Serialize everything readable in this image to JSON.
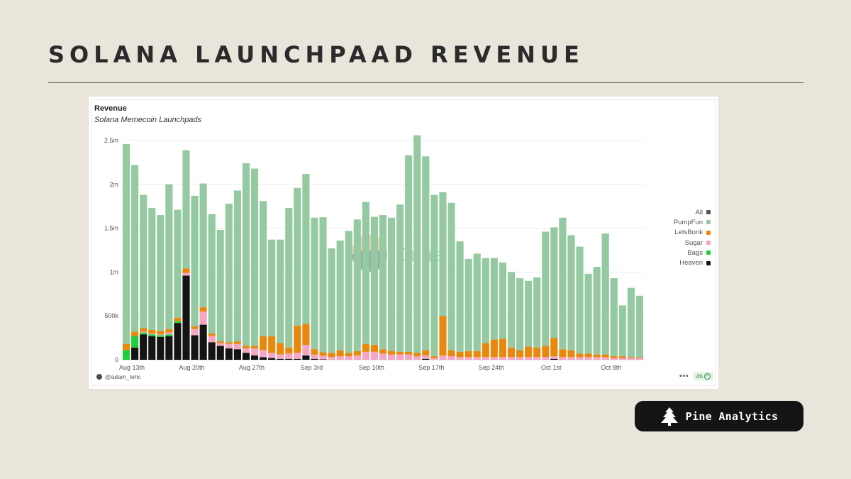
{
  "page_title": "SOLANA LAUNCHPAAD REVENUE",
  "brand": {
    "label": "Pine Analytics",
    "icon": "pine-tree-icon"
  },
  "footer": {
    "user": "@adam_tehc",
    "more_icon": "•••",
    "refresh": "4h"
  },
  "watermark": "Dune",
  "colors": {
    "PumpFun": "#95c9a2",
    "LetsBonk": "#e8890d",
    "Sugar": "#f4a6c3",
    "Bags": "#1fcf3e",
    "Heaven": "#141414",
    "All": "#555555"
  },
  "chart_data": {
    "type": "bar",
    "stacked": true,
    "title": "Revenue",
    "subtitle": "Solana Memecoin Launchpads",
    "ylim": [
      0,
      2500000
    ],
    "yticks": [
      0,
      500000,
      1000000,
      1500000,
      2000000,
      2500000
    ],
    "ytick_labels": [
      "0",
      "500k",
      "1m",
      "1.5m",
      "2m",
      "2.5m"
    ],
    "xtick_labels": [
      "Aug 13th",
      "Aug 20th",
      "Aug 27th",
      "Sep 3rd",
      "Sep 10th",
      "Sep 17th",
      "Sep 24th",
      "Oct 1st",
      "Oct 8th"
    ],
    "xtick_indices": [
      0,
      7,
      14,
      21,
      28,
      35,
      42,
      49,
      56
    ],
    "legend": [
      "All",
      "PumpFun",
      "LetsBonk",
      "Sugar",
      "Bags",
      "Heaven"
    ],
    "categories": [
      "Aug 13",
      "Aug 14",
      "Aug 15",
      "Aug 16",
      "Aug 17",
      "Aug 18",
      "Aug 19",
      "Aug 20",
      "Aug 21",
      "Aug 22",
      "Aug 23",
      "Aug 24",
      "Aug 25",
      "Aug 26",
      "Aug 27",
      "Aug 28",
      "Aug 29",
      "Aug 30",
      "Aug 31",
      "Sep 1",
      "Sep 2",
      "Sep 3",
      "Sep 4",
      "Sep 5",
      "Sep 6",
      "Sep 7",
      "Sep 8",
      "Sep 9",
      "Sep 10",
      "Sep 11",
      "Sep 12",
      "Sep 13",
      "Sep 14",
      "Sep 15",
      "Sep 16",
      "Sep 17",
      "Sep 18",
      "Sep 19",
      "Sep 20",
      "Sep 21",
      "Sep 22",
      "Sep 23",
      "Sep 24",
      "Sep 25",
      "Sep 26",
      "Sep 27",
      "Sep 28",
      "Sep 29",
      "Sep 30",
      "Oct 1",
      "Oct 2",
      "Oct 3",
      "Oct 4",
      "Oct 5",
      "Oct 6",
      "Oct 7",
      "Oct 8",
      "Oct 9",
      "Oct 10",
      "Oct 11",
      "Oct 12"
    ],
    "series": [
      {
        "name": "Heaven",
        "values": [
          0,
          140000,
          290000,
          270000,
          260000,
          270000,
          420000,
          960000,
          280000,
          400000,
          200000,
          160000,
          130000,
          120000,
          80000,
          50000,
          30000,
          20000,
          10000,
          10000,
          10000,
          50000,
          10000,
          5000,
          0,
          0,
          0,
          0,
          0,
          0,
          0,
          0,
          0,
          0,
          0,
          10000,
          0,
          0,
          0,
          0,
          0,
          0,
          0,
          0,
          0,
          0,
          0,
          0,
          0,
          0,
          10000,
          0,
          0,
          0,
          0,
          0,
          0,
          0,
          0,
          0,
          0
        ]
      },
      {
        "name": "Bags",
        "values": [
          110000,
          130000,
          20000,
          20000,
          20000,
          20000,
          20000,
          0,
          0,
          0,
          0,
          0,
          0,
          0,
          0,
          0,
          0,
          0,
          0,
          0,
          0,
          0,
          0,
          0,
          0,
          0,
          0,
          0,
          0,
          0,
          0,
          0,
          0,
          0,
          0,
          0,
          0,
          0,
          0,
          0,
          0,
          0,
          0,
          0,
          0,
          0,
          0,
          0,
          0,
          0,
          0,
          0,
          0,
          0,
          0,
          0,
          0,
          0,
          0,
          0,
          0
        ]
      },
      {
        "name": "Sugar",
        "values": [
          0,
          0,
          10000,
          10000,
          10000,
          20000,
          0,
          30000,
          70000,
          150000,
          70000,
          30000,
          50000,
          60000,
          50000,
          80000,
          80000,
          60000,
          50000,
          60000,
          70000,
          120000,
          50000,
          40000,
          30000,
          40000,
          40000,
          50000,
          90000,
          90000,
          70000,
          60000,
          60000,
          60000,
          40000,
          40000,
          20000,
          50000,
          40000,
          30000,
          30000,
          30000,
          30000,
          30000,
          30000,
          30000,
          30000,
          30000,
          30000,
          30000,
          30000,
          30000,
          30000,
          30000,
          30000,
          30000,
          30000,
          20000,
          20000,
          20000,
          20000
        ]
      },
      {
        "name": "LetsBonk",
        "values": [
          70000,
          50000,
          40000,
          40000,
          40000,
          40000,
          40000,
          50000,
          30000,
          50000,
          30000,
          20000,
          20000,
          30000,
          30000,
          30000,
          160000,
          190000,
          130000,
          70000,
          310000,
          240000,
          60000,
          40000,
          50000,
          70000,
          40000,
          50000,
          90000,
          80000,
          50000,
          40000,
          30000,
          30000,
          40000,
          60000,
          20000,
          450000,
          70000,
          60000,
          70000,
          70000,
          160000,
          200000,
          210000,
          110000,
          80000,
          120000,
          110000,
          130000,
          210000,
          90000,
          80000,
          40000,
          40000,
          30000,
          30000,
          20000,
          20000,
          10000,
          10000
        ]
      },
      {
        "name": "PumpFun",
        "values": [
          2280000,
          1900000,
          1520000,
          1390000,
          1320000,
          1650000,
          1230000,
          1350000,
          1490000,
          1410000,
          1360000,
          1270000,
          1580000,
          1720000,
          2080000,
          2020000,
          1540000,
          1100000,
          1180000,
          1590000,
          1570000,
          1710000,
          1500000,
          1540000,
          1190000,
          1250000,
          1390000,
          1500000,
          1620000,
          1460000,
          1530000,
          1520000,
          1680000,
          2240000,
          2480000,
          2210000,
          1840000,
          1410000,
          1680000,
          1260000,
          1050000,
          1110000,
          970000,
          930000,
          870000,
          860000,
          820000,
          750000,
          800000,
          1300000,
          1260000,
          1500000,
          1310000,
          1220000,
          910000,
          1000000,
          1380000,
          890000,
          580000,
          790000,
          700000
        ]
      }
    ],
    "all_total": [
      2460000,
      2220000,
      1880000,
      1730000,
      1650000,
      2000000,
      1710000,
      2390000,
      1870000,
      2010000,
      1660000,
      1480000,
      1780000,
      1930000,
      2240000,
      2180000,
      1810000,
      1370000,
      1370000,
      1730000,
      1960000,
      2120000,
      1620000,
      1620000,
      1270000,
      1360000,
      1470000,
      1600000,
      1800000,
      1630000,
      1650000,
      1620000,
      1770000,
      2330000,
      2560000,
      2300000,
      1880000,
      1910000,
      1790000,
      1350000,
      1150000,
      1210000,
      1160000,
      1160000,
      1110000,
      1000000,
      930000,
      900000,
      940000,
      1460000,
      1510000,
      1620000,
      1420000,
      1290000,
      980000,
      1060000,
      1440000,
      930000,
      620000,
      820000,
      730000
    ]
  }
}
